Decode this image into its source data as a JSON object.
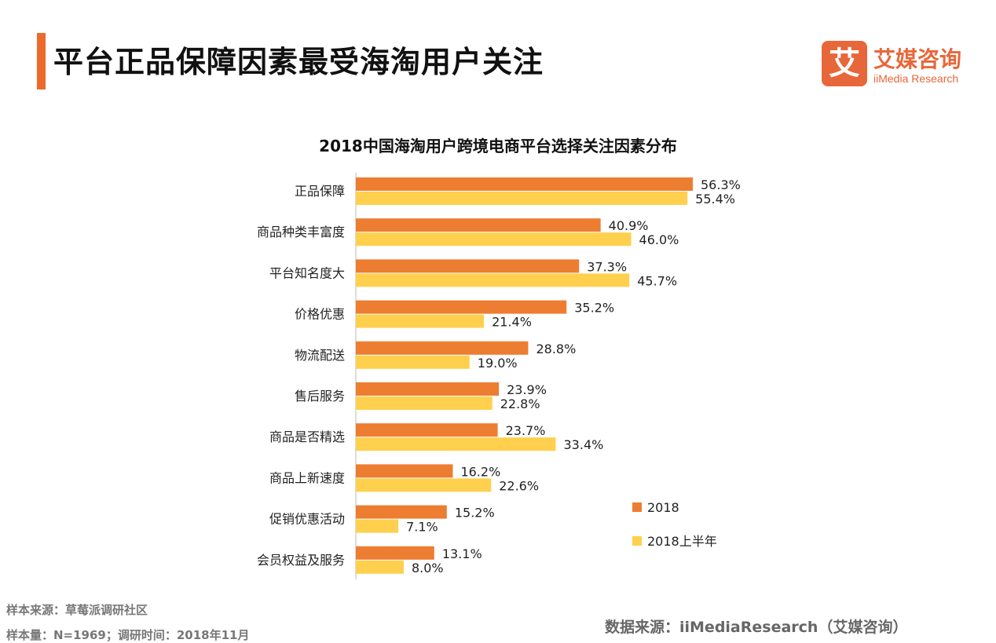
{
  "header": {
    "title": "平台正品保障因素最受海淘用户关注"
  },
  "logo": {
    "mark": "艾",
    "name_cn": "艾媒咨询",
    "name_en": "iiMedia Research"
  },
  "chart_data": {
    "type": "bar",
    "orientation": "horizontal",
    "title": "2018中国海淘用户跨境电商平台选择关注因素分布",
    "categories": [
      "正品保障",
      "商品种类丰富度",
      "平台知名度大",
      "价格优惠",
      "物流配送",
      "售后服务",
      "商品是否精选",
      "商品上新速度",
      "促销优惠活动",
      "会员权益及服务"
    ],
    "series": [
      {
        "name": "2018",
        "color": "#ED7D31",
        "values": [
          56.3,
          40.9,
          37.3,
          35.2,
          28.8,
          23.9,
          23.7,
          16.2,
          15.2,
          13.1
        ]
      },
      {
        "name": "2018上半年",
        "color": "#FFD04D",
        "values": [
          55.4,
          46.0,
          45.7,
          21.4,
          19.0,
          22.8,
          33.4,
          22.6,
          7.1,
          8.0
        ]
      }
    ],
    "value_suffix": "%",
    "xlim": [
      0,
      60
    ],
    "grid": false,
    "legend_position": "right"
  },
  "footer": {
    "sample_source": "样本来源：草莓派调研社区",
    "sample_size": "样本量：N=1969；调研时间：2018年11月",
    "data_source": "数据来源：iiMediaResearch（艾媒咨询）"
  }
}
